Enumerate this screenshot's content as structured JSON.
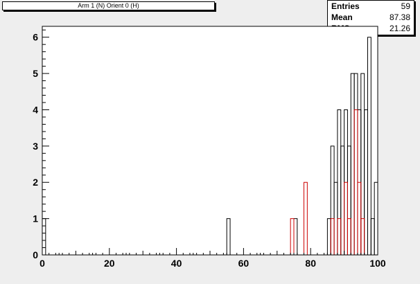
{
  "chart_data": {
    "type": "bar",
    "title": "Arm 1 (N) Orient 0 (H)",
    "xlim": [
      0,
      100
    ],
    "ylim": [
      0,
      6.3
    ],
    "x_ticks": [
      "0",
      "20",
      "40",
      "60",
      "80",
      "100"
    ],
    "y_ticks": [
      "0",
      "1",
      "2",
      "3",
      "4",
      "5",
      "6"
    ],
    "stats": {
      "entries_label": "Entries",
      "entries": "59",
      "mean_label": "Mean",
      "mean": "87.38",
      "rms_label": "RMS",
      "rms": "21.26"
    },
    "series": [
      {
        "color": "#000000",
        "bins": [
          {
            "x0": 0,
            "x1": 1,
            "y": 1
          },
          {
            "x0": 55,
            "x1": 56,
            "y": 1
          },
          {
            "x0": 75,
            "x1": 76,
            "y": 1
          },
          {
            "x0": 85,
            "x1": 86,
            "y": 1
          },
          {
            "x0": 86,
            "x1": 87,
            "y": 3
          },
          {
            "x0": 87,
            "x1": 88,
            "y": 2
          },
          {
            "x0": 88,
            "x1": 89,
            "y": 4
          },
          {
            "x0": 89,
            "x1": 90,
            "y": 3
          },
          {
            "x0": 90,
            "x1": 91,
            "y": 4
          },
          {
            "x0": 91,
            "x1": 92,
            "y": 3
          },
          {
            "x0": 92,
            "x1": 93,
            "y": 5
          },
          {
            "x0": 93,
            "x1": 94,
            "y": 5
          },
          {
            "x0": 94,
            "x1": 95,
            "y": 4
          },
          {
            "x0": 95,
            "x1": 96,
            "y": 5
          },
          {
            "x0": 96,
            "x1": 97,
            "y": 4
          },
          {
            "x0": 97,
            "x1": 98,
            "y": 6
          },
          {
            "x0": 98,
            "x1": 99,
            "y": 1
          },
          {
            "x0": 99,
            "x1": 100,
            "y": 2
          }
        ]
      },
      {
        "color": "#cc0000",
        "bins": [
          {
            "x0": 74,
            "x1": 75,
            "y": 1
          },
          {
            "x0": 78,
            "x1": 79,
            "y": 2
          },
          {
            "x0": 86,
            "x1": 87,
            "y": 1
          },
          {
            "x0": 87,
            "x1": 88,
            "y": 0
          },
          {
            "x0": 88,
            "x1": 89,
            "y": 1
          },
          {
            "x0": 89,
            "x1": 90,
            "y": 0
          },
          {
            "x0": 90,
            "x1": 91,
            "y": 2
          },
          {
            "x0": 91,
            "x1": 92,
            "y": 1
          },
          {
            "x0": 93,
            "x1": 94,
            "y": 4
          },
          {
            "x0": 94,
            "x1": 95,
            "y": 2
          },
          {
            "x0": 95,
            "x1": 96,
            "y": 1
          }
        ]
      }
    ]
  }
}
